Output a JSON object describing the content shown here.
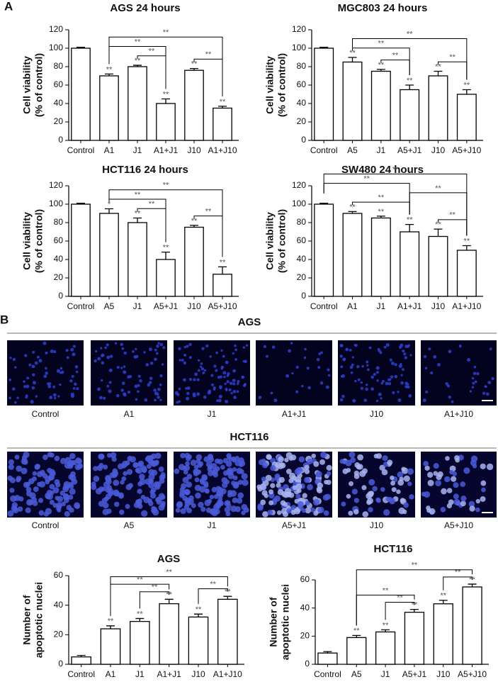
{
  "panel_labels": [
    "A",
    "B"
  ],
  "chart_data": [
    {
      "type": "bar",
      "title": "AGS 24 hours",
      "ylabel": [
        "Cell viability",
        "(% of control)"
      ],
      "categories": [
        "Control",
        "A1",
        "J1",
        "A1+J1",
        "J10",
        "A1+J10"
      ],
      "values": [
        100,
        70,
        80,
        40,
        76,
        35
      ],
      "errors": [
        1,
        2,
        1.5,
        5,
        2,
        2
      ],
      "sig_labels": [
        null,
        "**",
        "**",
        "**",
        "**",
        "**"
      ],
      "comparisons": [
        {
          "from": "A1",
          "to": "A1+J10",
          "label": "**"
        },
        {
          "from": "A1",
          "to": "A1+J1",
          "label": "**"
        },
        {
          "from": "J1",
          "to": "A1+J1",
          "label": "**"
        },
        {
          "from": "J10",
          "to": "A1+J10",
          "label": "**"
        }
      ],
      "color": "#ffffff",
      "ylim": [
        0,
        120
      ],
      "yticks": [
        0,
        20,
        40,
        60,
        80,
        100,
        120
      ]
    },
    {
      "type": "bar",
      "title": "MGC803 24 hours",
      "ylabel": [
        "Cell viability",
        "(% of control)"
      ],
      "categories": [
        "Control",
        "A5",
        "J1",
        "A5+J1",
        "J10",
        "A5+J10"
      ],
      "values": [
        100,
        85,
        75,
        55,
        70,
        50
      ],
      "errors": [
        1,
        5,
        2,
        5,
        5,
        5
      ],
      "sig_labels": [
        null,
        "**",
        "**",
        "**",
        "**",
        "**"
      ],
      "comparisons": [
        {
          "from": "A5",
          "to": "A5+J10",
          "label": "**"
        },
        {
          "from": "A5",
          "to": "A5+J1",
          "label": "**"
        },
        {
          "from": "J1",
          "to": "A5+J1",
          "label": "**"
        },
        {
          "from": "J10",
          "to": "A5+J10",
          "label": "**"
        }
      ],
      "color": "#ffffff",
      "ylim": [
        0,
        120
      ],
      "yticks": [
        0,
        20,
        40,
        60,
        80,
        100,
        120
      ]
    },
    {
      "type": "bar",
      "title": "HCT116 24 hours",
      "ylabel": [
        "Cell viability",
        "(% of control)"
      ],
      "categories": [
        "Control",
        "A5",
        "J1",
        "A5+J1",
        "J10",
        "A5+J10"
      ],
      "values": [
        100,
        90,
        80,
        40,
        75,
        24
      ],
      "errors": [
        1,
        5,
        5,
        8,
        2,
        8
      ],
      "sig_labels": [
        null,
        "*",
        "**",
        "**",
        "**",
        "**"
      ],
      "comparisons": [
        {
          "from": "A5",
          "to": "A5+J10",
          "label": "**"
        },
        {
          "from": "A5",
          "to": "A5+J1",
          "label": "**"
        },
        {
          "from": "J1",
          "to": "A5+J1",
          "label": "**"
        },
        {
          "from": "J10",
          "to": "A5+J10",
          "label": "**"
        }
      ],
      "color": "#ffffff",
      "ylim": [
        0,
        120
      ],
      "yticks": [
        0,
        20,
        40,
        60,
        80,
        100,
        120
      ]
    },
    {
      "type": "bar",
      "title": "SW480 24 hours",
      "ylabel": [
        "Cell viability",
        "(% of control)"
      ],
      "categories": [
        "Control",
        "A1",
        "J1",
        "A1+J1",
        "J10",
        "A1+J10"
      ],
      "values": [
        100,
        90,
        85,
        70,
        65,
        50
      ],
      "errors": [
        1,
        2,
        2,
        8,
        8,
        5
      ],
      "sig_labels": [
        null,
        "**",
        "**",
        "**",
        "**",
        "**"
      ],
      "comparisons": [
        {
          "from": "Control",
          "to": "A1+J10",
          "label": "**"
        },
        {
          "from": "Control",
          "to": "A1+J1",
          "label": "**"
        },
        {
          "from": "A1",
          "to": "A1+J1",
          "label": "**"
        },
        {
          "from": "A1+J1",
          "to": "A1+J10",
          "label": "**"
        },
        {
          "from": "J10",
          "to": "A1+J10",
          "label": "**"
        }
      ],
      "color": "#ffffff",
      "ylim": [
        0,
        120
      ],
      "yticks": [
        0,
        20,
        40,
        60,
        80,
        100,
        120
      ]
    },
    {
      "type": "bar",
      "title": "AGS",
      "ylabel": [
        "Number of",
        "apoptotic nuclei"
      ],
      "categories": [
        "Control",
        "A1",
        "J1",
        "A1+J1",
        "J10",
        "A1+J10"
      ],
      "values": [
        5,
        24,
        29,
        41,
        32,
        44
      ],
      "errors": [
        1,
        2,
        2,
        3,
        2,
        2
      ],
      "sig_labels": [
        null,
        "**",
        "**",
        "**",
        "**",
        "**"
      ],
      "comparisons": [
        {
          "from": "A1",
          "to": "A1+J10",
          "label": "**"
        },
        {
          "from": "A1",
          "to": "A1+J1",
          "label": "**"
        },
        {
          "from": "J1",
          "to": "A1+J1",
          "label": "**"
        },
        {
          "from": "J10",
          "to": "A1+J10",
          "label": "**"
        }
      ],
      "color": "#ffffff",
      "ylim": [
        0,
        60
      ],
      "yticks": [
        0,
        20,
        40,
        60
      ]
    },
    {
      "type": "bar",
      "title": "HCT116",
      "ylabel": [
        "Number of",
        "apoptotic nuclei"
      ],
      "categories": [
        "Control",
        "A5",
        "J1",
        "A5+J1",
        "J10",
        "A5+J10"
      ],
      "values": [
        8,
        19,
        23,
        37,
        43,
        55
      ],
      "errors": [
        1,
        1.5,
        1.5,
        2,
        2.5,
        2
      ],
      "sig_labels": [
        null,
        "**",
        "**",
        "**",
        "**",
        "**"
      ],
      "comparisons": [
        {
          "from": "A5",
          "to": "A5+J10",
          "label": "**"
        },
        {
          "from": "A5",
          "to": "A5+J1",
          "label": "**"
        },
        {
          "from": "J1",
          "to": "A5+J1",
          "label": "**"
        },
        {
          "from": "J10",
          "to": "A5+J10",
          "label": "**"
        }
      ],
      "color": "#ffffff",
      "ylim": [
        0,
        60
      ],
      "yticks": [
        0,
        20,
        40,
        60
      ]
    }
  ],
  "image_panels": [
    {
      "title": "AGS",
      "captions": [
        "Control",
        "A1",
        "J1",
        "A1+J1",
        "J10",
        "A1+J10"
      ]
    },
    {
      "title": "HCT116",
      "captions": [
        "Control",
        "A5",
        "J1",
        "A5+J1",
        "J10",
        "A5+J10"
      ]
    }
  ]
}
